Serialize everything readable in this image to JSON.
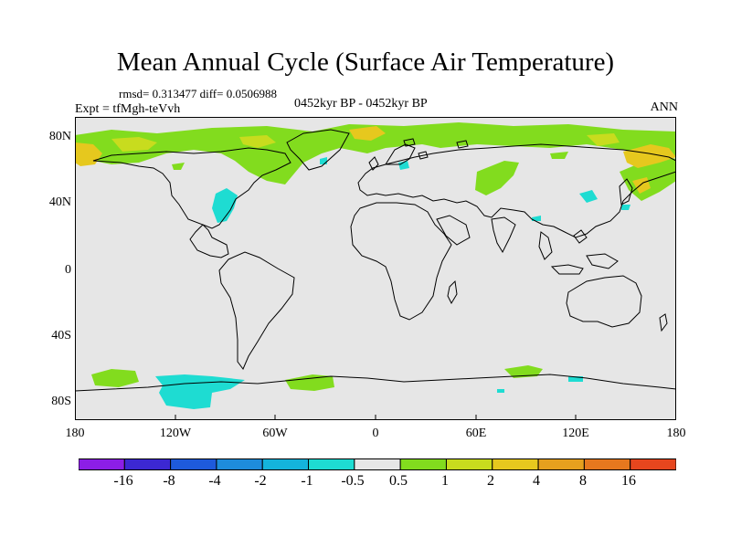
{
  "title": "Mean Annual Cycle (Surface Air Temperature)",
  "stats_text": "rmsd= 0.313477 diff= 0.0506988",
  "experiment_text": "Expt = tfMgh-teVvh",
  "period_text": "0452kyr BP - 0452kyr BP",
  "season_text": "ANN",
  "map": {
    "projection": "cylindrical-equidistant",
    "lon_range": [
      -180,
      180
    ],
    "lat_range": [
      -90,
      90
    ],
    "background_color": "#e6e6e6",
    "coastline_color": "#000000",
    "lat_ticks": [
      "80N",
      "40N",
      "0",
      "40S",
      "80S"
    ],
    "lon_ticks": [
      "180",
      "120W",
      "60W",
      "0",
      "60E",
      "120E",
      "180"
    ]
  },
  "colorbar": {
    "colors": [
      "#8c1ee6",
      "#3c28d2",
      "#1e5adc",
      "#1e8cdc",
      "#14b4dc",
      "#1edcd2",
      "#e6e6e6",
      "#82dc1e",
      "#c8dc1e",
      "#e6c81e",
      "#e6a01e",
      "#e6781e",
      "#e6461e"
    ],
    "labels": [
      "-16",
      "-8",
      "-4",
      "-2",
      "-1",
      "-0.5",
      "0.5",
      "1",
      "2",
      "4",
      "8",
      "16"
    ]
  }
}
